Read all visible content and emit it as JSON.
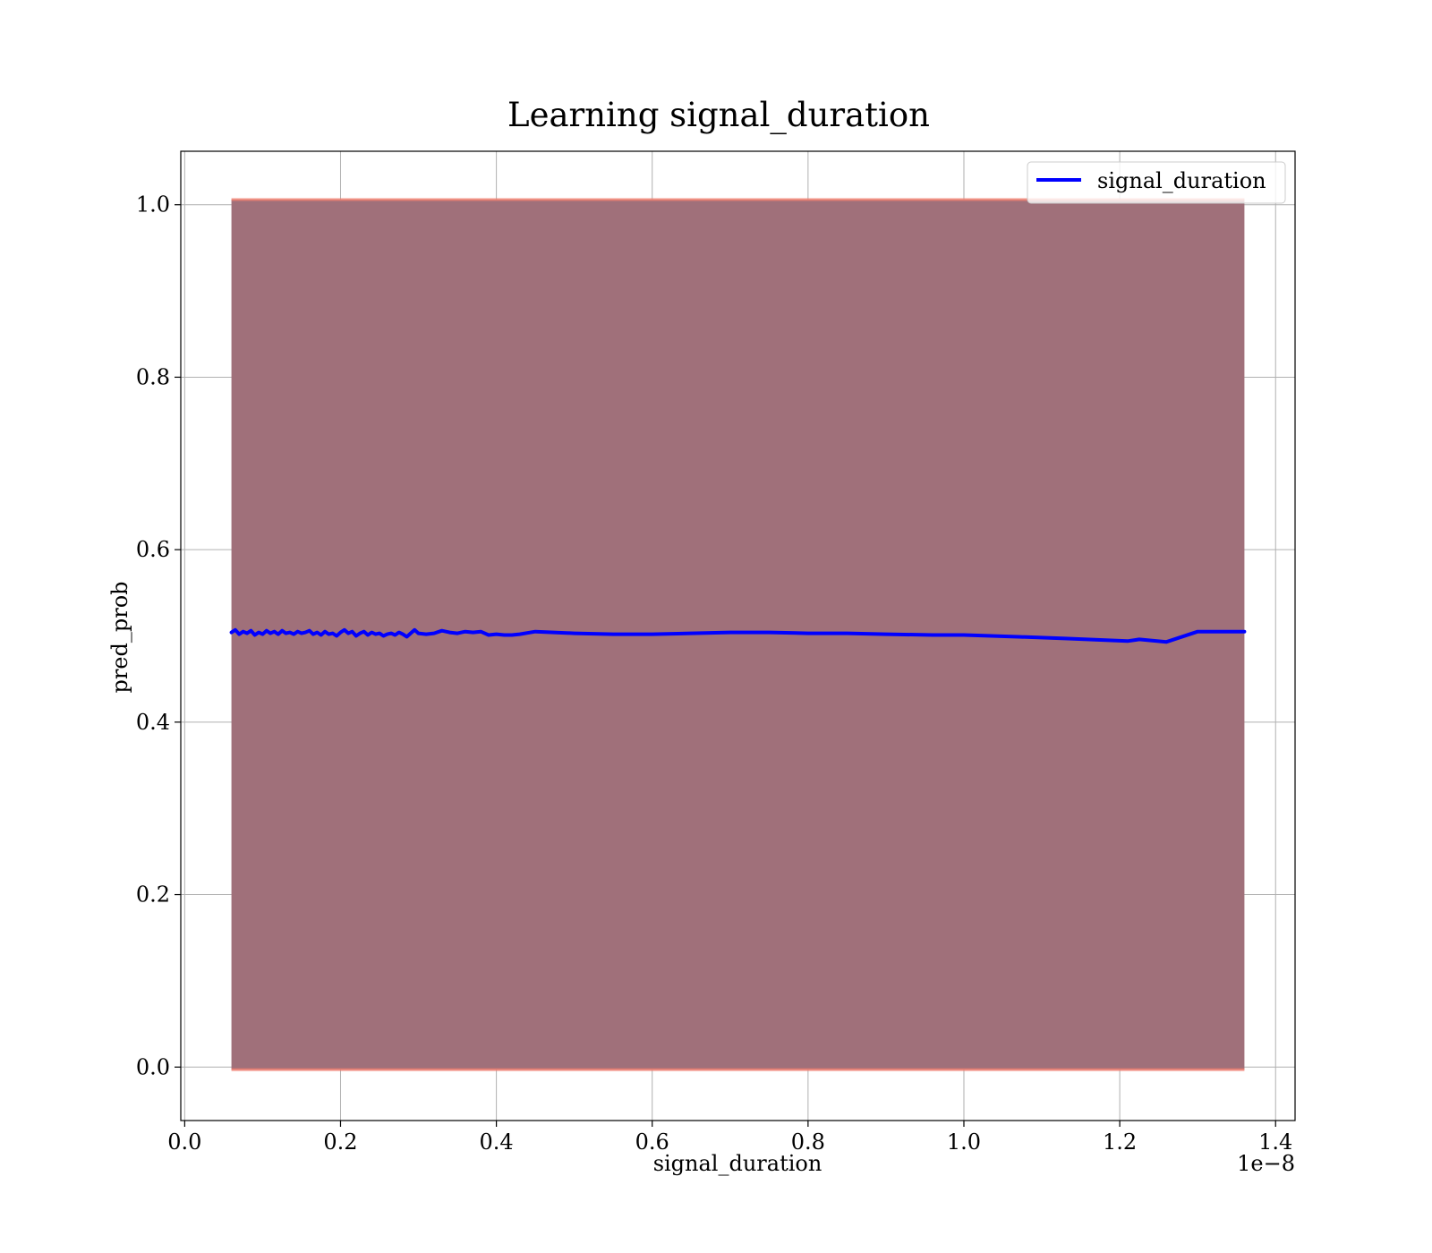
{
  "chart_data": {
    "type": "line",
    "title": "Learning signal_duration",
    "xlabel": "signal_duration",
    "ylabel": "pred_prob",
    "x_offset_label": "1e−8",
    "xlim": [
      -0.005,
      1.425
    ],
    "ylim": [
      -0.062,
      1.062
    ],
    "x_ticks": [
      0.0,
      0.2,
      0.4,
      0.6,
      0.8,
      1.0,
      1.2,
      1.4
    ],
    "x_tick_labels": [
      "0.0",
      "0.2",
      "0.4",
      "0.6",
      "0.8",
      "1.0",
      "1.2",
      "1.4"
    ],
    "y_ticks": [
      0.0,
      0.2,
      0.4,
      0.6,
      0.8,
      1.0
    ],
    "y_tick_labels": [
      "0.0",
      "0.2",
      "0.4",
      "0.6",
      "0.8",
      "1.0"
    ],
    "grid": true,
    "legend_position": "top-right",
    "series": [
      {
        "name": "signal_duration",
        "color": "#0000ff",
        "x": [
          0.06,
          0.065,
          0.07,
          0.075,
          0.08,
          0.085,
          0.09,
          0.095,
          0.1,
          0.105,
          0.11,
          0.115,
          0.12,
          0.125,
          0.13,
          0.135,
          0.14,
          0.145,
          0.15,
          0.155,
          0.16,
          0.165,
          0.17,
          0.175,
          0.18,
          0.185,
          0.19,
          0.195,
          0.2,
          0.205,
          0.21,
          0.215,
          0.22,
          0.225,
          0.23,
          0.235,
          0.24,
          0.245,
          0.25,
          0.255,
          0.26,
          0.265,
          0.27,
          0.275,
          0.28,
          0.285,
          0.29,
          0.295,
          0.3,
          0.31,
          0.32,
          0.33,
          0.34,
          0.35,
          0.36,
          0.37,
          0.38,
          0.39,
          0.4,
          0.41,
          0.42,
          0.43,
          0.45,
          0.5,
          0.55,
          0.6,
          0.65,
          0.7,
          0.75,
          0.8,
          0.85,
          0.9,
          0.96,
          1.0,
          1.07,
          1.13,
          1.21,
          1.225,
          1.26,
          1.3,
          1.36
        ],
        "y": [
          0.504,
          0.507,
          0.502,
          0.505,
          0.503,
          0.506,
          0.501,
          0.504,
          0.502,
          0.506,
          0.503,
          0.505,
          0.502,
          0.506,
          0.503,
          0.504,
          0.502,
          0.505,
          0.503,
          0.504,
          0.506,
          0.502,
          0.504,
          0.501,
          0.505,
          0.502,
          0.503,
          0.5,
          0.504,
          0.507,
          0.503,
          0.505,
          0.5,
          0.503,
          0.505,
          0.501,
          0.504,
          0.502,
          0.503,
          0.5,
          0.502,
          0.503,
          0.501,
          0.504,
          0.502,
          0.499,
          0.503,
          0.507,
          0.503,
          0.502,
          0.503,
          0.506,
          0.504,
          0.503,
          0.505,
          0.504,
          0.505,
          0.501,
          0.502,
          0.501,
          0.501,
          0.502,
          0.505,
          0.503,
          0.502,
          0.502,
          0.503,
          0.504,
          0.504,
          0.503,
          0.503,
          0.502,
          0.501,
          0.501,
          0.499,
          0.497,
          0.494,
          0.496,
          0.493,
          0.505,
          0.505
        ]
      }
    ],
    "band": {
      "fill_color": "#a0707a",
      "edge_color": "#f08070",
      "lower": -0.003,
      "upper": 1.006
    }
  }
}
